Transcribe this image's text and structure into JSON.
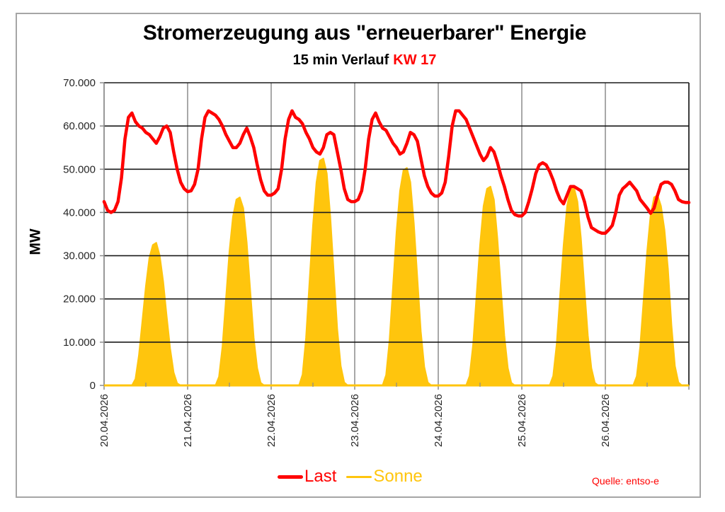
{
  "chart_data": {
    "type": "line",
    "title": "Stromerzeugung aus \"erneuerbarer\" Energie",
    "subtitle": "15 min Verlauf",
    "subtitle_highlight": "KW 17",
    "xlabel": "",
    "ylabel": "MW",
    "ylim": [
      0,
      70000
    ],
    "yticks": [
      0,
      10000,
      20000,
      30000,
      40000,
      50000,
      60000,
      70000
    ],
    "ytick_labels": [
      "0",
      "10.000",
      "20.000",
      "30.000",
      "40.000",
      "50.000",
      "60.000",
      "70.000"
    ],
    "x_categories": [
      "20.04.2026",
      "21.04.2026",
      "22.04.2026",
      "23.04.2026",
      "24.04.2026",
      "25.04.2026",
      "26.04.2026"
    ],
    "x_unit": "hours since 20.04.2026 00:00 (hourly samples of 15-min series)",
    "grid": true,
    "legend_position": "bottom",
    "source": "Quelle: entso-e",
    "series": [
      {
        "name": "Last",
        "color": "#ff0000",
        "kind": "line",
        "values": [
          42500,
          40500,
          40000,
          40500,
          42500,
          48000,
          57000,
          62000,
          63000,
          61000,
          60000,
          59500,
          58500,
          58000,
          57000,
          56000,
          57500,
          59500,
          60000,
          58500,
          54000,
          50000,
          47000,
          45500,
          44800,
          45000,
          46500,
          50000,
          57000,
          62000,
          63500,
          63000,
          62500,
          61500,
          60000,
          58000,
          56500,
          55000,
          55000,
          56000,
          58000,
          59500,
          57500,
          55000,
          51000,
          47500,
          45000,
          44000,
          44000,
          44500,
          45500,
          50000,
          57000,
          61500,
          63500,
          62000,
          61500,
          60500,
          58500,
          57000,
          55000,
          54000,
          53500,
          55000,
          58000,
          58500,
          58000,
          54000,
          50000,
          45500,
          43000,
          42500,
          42500,
          43000,
          45000,
          50000,
          57000,
          61500,
          63000,
          61000,
          59500,
          59000,
          57500,
          56000,
          55000,
          53500,
          54000,
          56000,
          58500,
          58000,
          56500,
          52500,
          48500,
          46000,
          44500,
          43800,
          43800,
          44500,
          47000,
          53000,
          60000,
          63500,
          63500,
          62500,
          61500,
          59500,
          57500,
          55500,
          53500,
          52000,
          53000,
          55000,
          54000,
          51500,
          48500,
          46000,
          43000,
          40500,
          39500,
          39200,
          39200,
          40000,
          42500,
          45500,
          49000,
          51000,
          51500,
          51000,
          49500,
          47500,
          45000,
          43000,
          42000,
          44000,
          46000,
          46000,
          45500,
          45000,
          42500,
          39000,
          36500,
          36000,
          35500,
          35200,
          35200,
          36000,
          37000,
          40000,
          44000,
          45500,
          46200,
          47000,
          46000,
          45000,
          43000,
          42000,
          41000,
          39800,
          41000,
          44000,
          46500,
          47000,
          47000,
          46500,
          45000,
          43000,
          42500,
          42300,
          42300
        ]
      },
      {
        "name": "Sonne",
        "color": "#ffc50d",
        "kind": "area",
        "daily_peaks": [
          33000,
          43500,
          52500,
          50300,
          46000,
          45800,
          44000
        ],
        "values": [
          0,
          0,
          0,
          0,
          0,
          0,
          0,
          0,
          0,
          1500,
          7000,
          15000,
          23000,
          29500,
          32500,
          33000,
          30000,
          24000,
          16000,
          8500,
          3000,
          500,
          0,
          0,
          0,
          0,
          0,
          0,
          0,
          0,
          0,
          0,
          0,
          2000,
          9000,
          20000,
          31000,
          39000,
          43000,
          43500,
          41000,
          33000,
          22000,
          11000,
          4000,
          600,
          0,
          0,
          0,
          0,
          0,
          0,
          0,
          0,
          0,
          0,
          0,
          2500,
          11000,
          24000,
          37000,
          47000,
          52000,
          52500,
          49000,
          39000,
          26000,
          13000,
          4500,
          700,
          0,
          0,
          0,
          0,
          0,
          0,
          0,
          0,
          0,
          0,
          0,
          2400,
          10500,
          23000,
          35500,
          45000,
          49800,
          50300,
          47000,
          37500,
          25000,
          12500,
          4300,
          700,
          0,
          0,
          0,
          0,
          0,
          0,
          0,
          0,
          0,
          0,
          0,
          2200,
          9500,
          21000,
          32500,
          41500,
          45500,
          46000,
          43000,
          34000,
          22500,
          11500,
          4000,
          600,
          0,
          0,
          0,
          0,
          0,
          0,
          0,
          0,
          0,
          0,
          0,
          2200,
          9500,
          21000,
          32500,
          41500,
          45500,
          45800,
          42500,
          34000,
          22500,
          11500,
          4000,
          600,
          0,
          0,
          0,
          0,
          0,
          0,
          0,
          0,
          0,
          0,
          0,
          2100,
          9000,
          20000,
          31000,
          39500,
          43500,
          44000,
          41500,
          36000,
          27000,
          14000,
          4500,
          700,
          0,
          0,
          0
        ]
      }
    ]
  },
  "legend": {
    "items": [
      {
        "label": "Last",
        "color": "#ff0000"
      },
      {
        "label": "Sonne",
        "color": "#ffc50d"
      }
    ]
  }
}
